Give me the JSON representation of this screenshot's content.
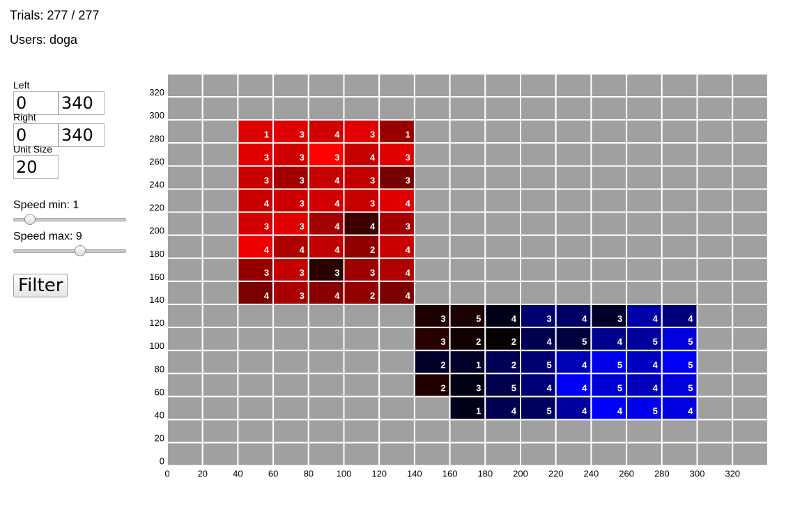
{
  "header": {
    "trials_text": "Trials: 277 / 277",
    "users_text": "Users: doga"
  },
  "controls": {
    "left_label": "Left",
    "left_min": "0",
    "left_max": "340",
    "right_label": "Right",
    "right_min": "0",
    "right_max": "340",
    "unit_label": "Unit Size",
    "unit_value": "20",
    "speed_min_label": "Speed min: 1",
    "speed_min_value": 1,
    "speed_max_label": "Speed max: 9",
    "speed_max_value": 9,
    "filter_label": "Filter"
  },
  "chart_data": {
    "type": "heatmap",
    "unit": 20,
    "xlim": [
      0,
      340
    ],
    "ylim": [
      0,
      340
    ],
    "x_ticks": [
      "0",
      "20",
      "40",
      "60",
      "80",
      "100",
      "120",
      "140",
      "160",
      "180",
      "200",
      "220",
      "240",
      "260",
      "280",
      "300",
      "320"
    ],
    "y_ticks": [
      "0",
      "20",
      "40",
      "60",
      "80",
      "100",
      "120",
      "140",
      "160",
      "180",
      "200",
      "220",
      "240",
      "260",
      "280",
      "300",
      "320"
    ],
    "empty_color": "#a0a0a0",
    "grid_color": "#ffffff",
    "red_cells": [
      {
        "x": 40,
        "y": 280,
        "count": 1,
        "color": "#dd0000"
      },
      {
        "x": 60,
        "y": 280,
        "count": 3,
        "color": "#dd0000"
      },
      {
        "x": 80,
        "y": 280,
        "count": 4,
        "color": "#d10000"
      },
      {
        "x": 100,
        "y": 280,
        "count": 3,
        "color": "#e20000"
      },
      {
        "x": 120,
        "y": 280,
        "count": 1,
        "color": "#980000"
      },
      {
        "x": 40,
        "y": 260,
        "count": 3,
        "color": "#e00000"
      },
      {
        "x": 60,
        "y": 260,
        "count": 3,
        "color": "#cf0000"
      },
      {
        "x": 80,
        "y": 260,
        "count": 3,
        "color": "#ff0000"
      },
      {
        "x": 100,
        "y": 260,
        "count": 4,
        "color": "#c40000"
      },
      {
        "x": 120,
        "y": 260,
        "count": 3,
        "color": "#e00000"
      },
      {
        "x": 40,
        "y": 240,
        "count": 3,
        "color": "#c80000"
      },
      {
        "x": 60,
        "y": 240,
        "count": 3,
        "color": "#a20000"
      },
      {
        "x": 80,
        "y": 240,
        "count": 4,
        "color": "#c40000"
      },
      {
        "x": 100,
        "y": 240,
        "count": 3,
        "color": "#c00000"
      },
      {
        "x": 120,
        "y": 240,
        "count": 3,
        "color": "#760000"
      },
      {
        "x": 40,
        "y": 220,
        "count": 4,
        "color": "#c90000"
      },
      {
        "x": 60,
        "y": 220,
        "count": 3,
        "color": "#cc0000"
      },
      {
        "x": 80,
        "y": 220,
        "count": 4,
        "color": "#d20000"
      },
      {
        "x": 100,
        "y": 220,
        "count": 3,
        "color": "#c40000"
      },
      {
        "x": 120,
        "y": 220,
        "count": 4,
        "color": "#e00000"
      },
      {
        "x": 40,
        "y": 200,
        "count": 3,
        "color": "#d40000"
      },
      {
        "x": 60,
        "y": 200,
        "count": 3,
        "color": "#e00000"
      },
      {
        "x": 80,
        "y": 200,
        "count": 4,
        "color": "#a40000"
      },
      {
        "x": 100,
        "y": 200,
        "count": 4,
        "color": "#3c0000"
      },
      {
        "x": 120,
        "y": 200,
        "count": 3,
        "color": "#a20000"
      },
      {
        "x": 40,
        "y": 180,
        "count": 4,
        "color": "#ee0000"
      },
      {
        "x": 60,
        "y": 180,
        "count": 4,
        "color": "#ac0000"
      },
      {
        "x": 80,
        "y": 180,
        "count": 4,
        "color": "#c00000"
      },
      {
        "x": 100,
        "y": 180,
        "count": 2,
        "color": "#900000"
      },
      {
        "x": 120,
        "y": 180,
        "count": 4,
        "color": "#ca0000"
      },
      {
        "x": 40,
        "y": 160,
        "count": 3,
        "color": "#940000"
      },
      {
        "x": 60,
        "y": 160,
        "count": 3,
        "color": "#c20000"
      },
      {
        "x": 80,
        "y": 160,
        "count": 3,
        "color": "#2a0000"
      },
      {
        "x": 100,
        "y": 160,
        "count": 3,
        "color": "#9c0000"
      },
      {
        "x": 120,
        "y": 160,
        "count": 4,
        "color": "#b00000"
      },
      {
        "x": 40,
        "y": 140,
        "count": 4,
        "color": "#7a0000"
      },
      {
        "x": 60,
        "y": 140,
        "count": 3,
        "color": "#a80000"
      },
      {
        "x": 80,
        "y": 140,
        "count": 4,
        "color": "#880000"
      },
      {
        "x": 100,
        "y": 140,
        "count": 2,
        "color": "#900000"
      },
      {
        "x": 120,
        "y": 140,
        "count": 4,
        "color": "#7a0000"
      },
      {
        "x": 140,
        "y": 120,
        "count": 3,
        "color": "#1c0000"
      },
      {
        "x": 160,
        "y": 120,
        "count": 5,
        "color": "#1a0000"
      },
      {
        "x": 140,
        "y": 100,
        "count": 3,
        "color": "#280000"
      },
      {
        "x": 160,
        "y": 100,
        "count": 2,
        "color": "#100000"
      },
      {
        "x": 180,
        "y": 100,
        "count": 2,
        "color": "#060000"
      },
      {
        "x": 140,
        "y": 60,
        "count": 2,
        "color": "#220000"
      }
    ],
    "blue_cells": [
      {
        "x": 180,
        "y": 120,
        "count": 4,
        "color": "#000018"
      },
      {
        "x": 200,
        "y": 120,
        "count": 3,
        "color": "#000070"
      },
      {
        "x": 220,
        "y": 120,
        "count": 4,
        "color": "#000064"
      },
      {
        "x": 240,
        "y": 120,
        "count": 3,
        "color": "#000028"
      },
      {
        "x": 260,
        "y": 120,
        "count": 4,
        "color": "#0000a8"
      },
      {
        "x": 280,
        "y": 120,
        "count": 4,
        "color": "#00007c"
      },
      {
        "x": 200,
        "y": 100,
        "count": 4,
        "color": "#000050"
      },
      {
        "x": 220,
        "y": 100,
        "count": 5,
        "color": "#00003c"
      },
      {
        "x": 240,
        "y": 100,
        "count": 4,
        "color": "#000090"
      },
      {
        "x": 260,
        "y": 100,
        "count": 5,
        "color": "#00009c"
      },
      {
        "x": 280,
        "y": 100,
        "count": 5,
        "color": "#0000dc"
      },
      {
        "x": 140,
        "y": 80,
        "count": 2,
        "color": "#00002a"
      },
      {
        "x": 160,
        "y": 80,
        "count": 1,
        "color": "#000028"
      },
      {
        "x": 180,
        "y": 80,
        "count": 2,
        "color": "#000054"
      },
      {
        "x": 200,
        "y": 80,
        "count": 5,
        "color": "#000070"
      },
      {
        "x": 220,
        "y": 80,
        "count": 4,
        "color": "#0000b4"
      },
      {
        "x": 240,
        "y": 80,
        "count": 5,
        "color": "#0000ec"
      },
      {
        "x": 260,
        "y": 80,
        "count": 4,
        "color": "#0000c0"
      },
      {
        "x": 280,
        "y": 80,
        "count": 5,
        "color": "#0000f6"
      },
      {
        "x": 160,
        "y": 60,
        "count": 3,
        "color": "#000012"
      },
      {
        "x": 180,
        "y": 60,
        "count": 5,
        "color": "#00004c"
      },
      {
        "x": 200,
        "y": 60,
        "count": 4,
        "color": "#000078"
      },
      {
        "x": 220,
        "y": 60,
        "count": 4,
        "color": "#0000f4"
      },
      {
        "x": 240,
        "y": 60,
        "count": 5,
        "color": "#0000d4"
      },
      {
        "x": 260,
        "y": 60,
        "count": 4,
        "color": "#0000ba"
      },
      {
        "x": 280,
        "y": 60,
        "count": 5,
        "color": "#0000d8"
      },
      {
        "x": 160,
        "y": 40,
        "count": 1,
        "color": "#00001a"
      },
      {
        "x": 180,
        "y": 40,
        "count": 4,
        "color": "#000050"
      },
      {
        "x": 200,
        "y": 40,
        "count": 5,
        "color": "#000060"
      },
      {
        "x": 220,
        "y": 40,
        "count": 4,
        "color": "#00009c"
      },
      {
        "x": 240,
        "y": 40,
        "count": 4,
        "color": "#0000ff"
      },
      {
        "x": 260,
        "y": 40,
        "count": 5,
        "color": "#0000ec"
      },
      {
        "x": 280,
        "y": 40,
        "count": 4,
        "color": "#0000e0"
      }
    ]
  }
}
